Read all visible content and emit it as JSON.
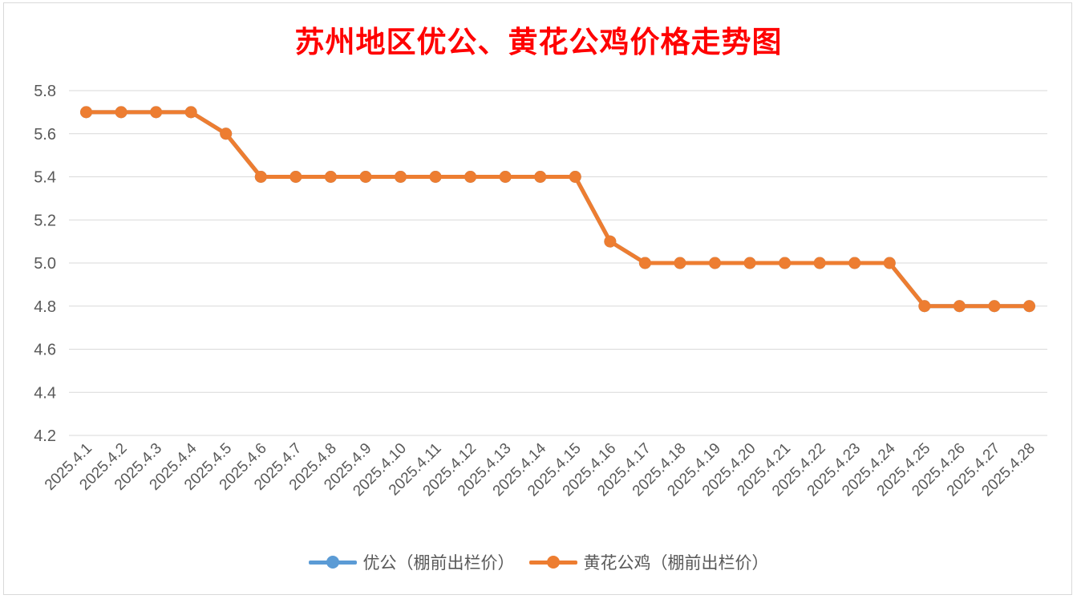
{
  "chart_data": {
    "type": "line",
    "title": "苏州地区优公、黄花公鸡价格走势图",
    "xlabel": "",
    "ylabel": "",
    "ylim": [
      4.2,
      5.8
    ],
    "yticks": [
      "5.8",
      "5.6",
      "5.4",
      "5.2",
      "5.0",
      "4.8",
      "4.6",
      "4.4",
      "4.2"
    ],
    "grid": true,
    "legend_position": "bottom",
    "categories": [
      "2025.4.1",
      "2025.4.2",
      "2025.4.3",
      "2025.4.4",
      "2025.4.5",
      "2025.4.6",
      "2025.4.7",
      "2025.4.8",
      "2025.4.9",
      "2025.4.10",
      "2025.4.11",
      "2025.4.12",
      "2025.4.13",
      "2025.4.14",
      "2025.4.15",
      "2025.4.16",
      "2025.4.17",
      "2025.4.18",
      "2025.4.19",
      "2025.4.20",
      "2025.4.21",
      "2025.4.22",
      "2025.4.23",
      "2025.4.24",
      "2025.4.25",
      "2025.4.26",
      "2025.4.27",
      "2025.4.28"
    ],
    "series": [
      {
        "name": "优公（棚前出栏价）",
        "color": "#5b9bd5",
        "values": [
          5.7,
          5.7,
          5.7,
          5.7,
          5.6,
          5.4,
          5.4,
          5.4,
          5.4,
          5.4,
          5.4,
          5.4,
          5.4,
          5.4,
          5.4,
          5.1,
          5.0,
          5.0,
          5.0,
          5.0,
          5.0,
          5.0,
          5.0,
          5.0,
          4.8,
          4.8,
          4.8,
          4.8
        ]
      },
      {
        "name": "黄花公鸡（棚前出栏价）",
        "color": "#ed7d31",
        "values": [
          5.7,
          5.7,
          5.7,
          5.7,
          5.6,
          5.4,
          5.4,
          5.4,
          5.4,
          5.4,
          5.4,
          5.4,
          5.4,
          5.4,
          5.4,
          5.1,
          5.0,
          5.0,
          5.0,
          5.0,
          5.0,
          5.0,
          5.0,
          5.0,
          4.8,
          4.8,
          4.8,
          4.8
        ]
      }
    ]
  }
}
